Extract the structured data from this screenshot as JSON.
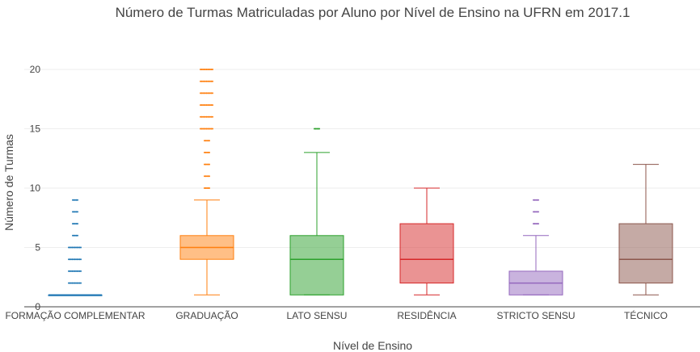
{
  "chart_data": {
    "type": "box",
    "title": "Número de Turmas Matriculadas por Aluno por Nível de Ensino na UFRN em 2017.1",
    "xlabel": "Nível de Ensino",
    "ylabel": "Número de Turmas",
    "ylim": [
      0,
      20
    ],
    "yticks": [
      0,
      5,
      10,
      15,
      20
    ],
    "grid": true,
    "categories": [
      "FORMAÇÃO COMPLEMENTAR",
      "GRADUAÇÃO",
      "LATO SENSU",
      "RESIDÊNCIA",
      "STRICTO SENSU",
      "TÉCNICO"
    ],
    "boxes": [
      {
        "category": "FORMAÇÃO COMPLEMENTAR",
        "min": 1,
        "q1": 1,
        "median": 1,
        "q3": 1,
        "max": 1,
        "outliers": [
          2,
          3,
          4,
          5,
          6,
          7,
          8,
          9
        ],
        "color": "#1f77b4"
      },
      {
        "category": "GRADUAÇÃO",
        "min": 1,
        "q1": 4,
        "median": 5,
        "q3": 6,
        "max": 9,
        "outliers": [
          10,
          11,
          12,
          13,
          14,
          15,
          16,
          17,
          18,
          19,
          20
        ],
        "color": "#ff7f0e"
      },
      {
        "category": "LATO SENSU",
        "min": 1,
        "q1": 1,
        "median": 4,
        "q3": 6,
        "max": 13,
        "outliers": [
          15
        ],
        "color": "#2ca02c"
      },
      {
        "category": "RESIDÊNCIA",
        "min": 1,
        "q1": 2,
        "median": 4,
        "q3": 7,
        "max": 10,
        "outliers": [],
        "color": "#d62728"
      },
      {
        "category": "STRICTO SENSU",
        "min": 1,
        "q1": 1,
        "median": 2,
        "q3": 3,
        "max": 6,
        "outliers": [
          7,
          8,
          9
        ],
        "color": "#9467bd"
      },
      {
        "category": "TÉCNICO",
        "min": 1,
        "q1": 2,
        "median": 4,
        "q3": 7,
        "max": 12,
        "outliers": [],
        "color": "#8c564b"
      }
    ]
  }
}
